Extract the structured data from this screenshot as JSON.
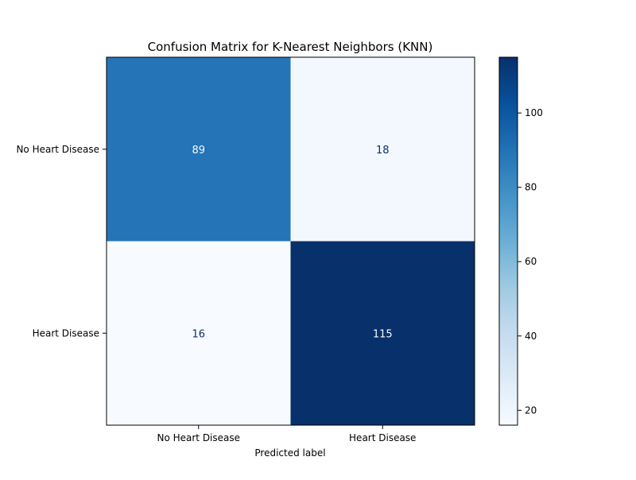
{
  "chart_data": {
    "type": "heatmap",
    "title": "Confusion Matrix for K-Nearest Neighbors (KNN)",
    "xlabel": "Predicted label",
    "ylabel": "",
    "x_categories": [
      "No Heart Disease",
      "Heart Disease"
    ],
    "y_categories": [
      "No Heart Disease",
      "Heart Disease"
    ],
    "values": [
      [
        89,
        18
      ],
      [
        16,
        115
      ]
    ],
    "colormap": "Blues",
    "colorbar": {
      "range": [
        16,
        115
      ],
      "ticks": [
        20,
        40,
        60,
        80,
        100
      ],
      "placement": "right"
    },
    "grid": false
  },
  "colors": {
    "cell_89": "#2474b7",
    "cell_18": "#f2f7fd",
    "cell_16": "#f7fbff",
    "cell_115": "#08306b",
    "text_on_dark": "#f7fbff",
    "text_on_light": "#08306b"
  }
}
